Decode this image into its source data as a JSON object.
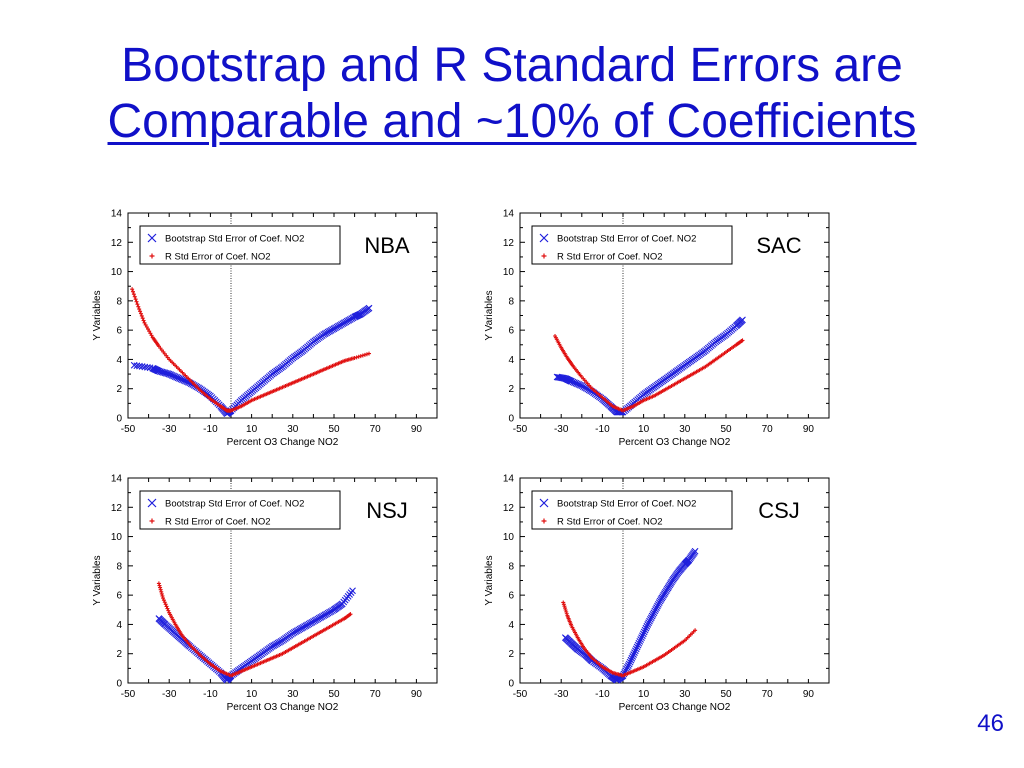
{
  "slide": {
    "title_line1": "Bootstrap and R Standard Errors are",
    "title_line2": "Comparable and ~10% of Coefficients",
    "number": "46"
  },
  "colors": {
    "title": "#1010c8",
    "bootstrap_series": "#1f1fdc",
    "r_series": "#e01010",
    "axis": "#000000"
  },
  "chart_data": [
    {
      "type": "scatter",
      "panel_label": "NBA",
      "xlabel": "Percent O3 Change NO2",
      "ylabel": "Y Variables",
      "xlim": [
        -50,
        100
      ],
      "ylim": [
        0,
        14
      ],
      "xticks": [
        -50,
        -30,
        -10,
        10,
        30,
        50,
        70,
        90
      ],
      "yticks": [
        0,
        2,
        4,
        6,
        8,
        10,
        12,
        14
      ],
      "vline_x": 0,
      "legend_position": "top-left",
      "series": [
        {
          "name": "Bootstrap Std Error of Coef. NO2",
          "marker": "x",
          "color": "#1f1fdc",
          "x": [
            -47,
            -38,
            -35,
            -30,
            -25,
            -20,
            -15,
            -10,
            -5,
            -2,
            0,
            5,
            10,
            15,
            20,
            25,
            30,
            35,
            40,
            45,
            50,
            55,
            60,
            63,
            67
          ],
          "y": [
            3.6,
            3.4,
            3.2,
            3.0,
            2.7,
            2.4,
            2.0,
            1.5,
            0.8,
            0.3,
            0.5,
            1.2,
            1.8,
            2.4,
            3.0,
            3.5,
            4.1,
            4.6,
            5.2,
            5.7,
            6.1,
            6.5,
            6.9,
            7.1,
            7.5
          ]
        },
        {
          "name": "R Std Error of Coef. NO2",
          "marker": "+",
          "color": "#e01010",
          "x": [
            -48,
            -45,
            -42,
            -38,
            -35,
            -30,
            -25,
            -20,
            -15,
            -10,
            -5,
            -2,
            0,
            5,
            10,
            15,
            20,
            25,
            30,
            35,
            40,
            45,
            50,
            55,
            60,
            67
          ],
          "y": [
            8.8,
            7.6,
            6.5,
            5.5,
            4.9,
            4.0,
            3.3,
            2.6,
            1.9,
            1.3,
            0.8,
            0.5,
            0.5,
            0.8,
            1.2,
            1.5,
            1.8,
            2.1,
            2.4,
            2.7,
            3.0,
            3.3,
            3.6,
            3.9,
            4.1,
            4.4
          ]
        }
      ]
    },
    {
      "type": "scatter",
      "panel_label": "SAC",
      "xlabel": "Percent O3 Change NO2",
      "ylabel": "Y Variables",
      "xlim": [
        -50,
        100
      ],
      "ylim": [
        0,
        14
      ],
      "xticks": [
        -50,
        -30,
        -10,
        10,
        30,
        50,
        70,
        90
      ],
      "yticks": [
        0,
        2,
        4,
        6,
        8,
        10,
        12,
        14
      ],
      "vline_x": 0,
      "legend_position": "top-left",
      "series": [
        {
          "name": "Bootstrap Std Error of Coef. NO2",
          "marker": "x",
          "color": "#1f1fdc",
          "x": [
            -32,
            -28,
            -25,
            -20,
            -15,
            -10,
            -6,
            -3,
            0,
            5,
            10,
            15,
            20,
            25,
            30,
            35,
            40,
            45,
            50,
            55,
            58
          ],
          "y": [
            2.8,
            2.7,
            2.5,
            2.2,
            1.8,
            1.3,
            0.8,
            0.4,
            0.4,
            1.0,
            1.6,
            2.1,
            2.6,
            3.1,
            3.6,
            4.1,
            4.6,
            5.2,
            5.7,
            6.3,
            6.7
          ]
        },
        {
          "name": "R Std Error of Coef. NO2",
          "marker": "+",
          "color": "#e01010",
          "x": [
            -33,
            -30,
            -27,
            -24,
            -20,
            -15,
            -10,
            -5,
            0,
            5,
            10,
            15,
            20,
            25,
            30,
            35,
            40,
            45,
            50,
            55,
            58
          ],
          "y": [
            5.6,
            4.8,
            4.1,
            3.5,
            2.8,
            2.0,
            1.4,
            0.8,
            0.5,
            0.8,
            1.2,
            1.5,
            1.9,
            2.3,
            2.7,
            3.1,
            3.5,
            4.0,
            4.5,
            5.0,
            5.3
          ]
        }
      ]
    },
    {
      "type": "scatter",
      "panel_label": "NSJ",
      "xlabel": "Percent O3 Change NO2",
      "ylabel": "Y Variables",
      "xlim": [
        -50,
        100
      ],
      "ylim": [
        0,
        14
      ],
      "xticks": [
        -50,
        -30,
        -10,
        10,
        30,
        50,
        70,
        90
      ],
      "yticks": [
        0,
        2,
        4,
        6,
        8,
        10,
        12,
        14
      ],
      "vline_x": 0,
      "legend_position": "top-left",
      "series": [
        {
          "name": "Bootstrap Std Error of Coef. NO2",
          "marker": "x",
          "color": "#1f1fdc",
          "x": [
            -35,
            -32,
            -28,
            -24,
            -20,
            -15,
            -10,
            -5,
            -2,
            0,
            5,
            10,
            15,
            20,
            25,
            30,
            35,
            40,
            45,
            50,
            54,
            59
          ],
          "y": [
            4.4,
            4.0,
            3.5,
            3.0,
            2.5,
            1.9,
            1.3,
            0.7,
            0.2,
            0.5,
            1.0,
            1.5,
            2.0,
            2.5,
            2.9,
            3.4,
            3.8,
            4.2,
            4.6,
            5.0,
            5.4,
            6.3
          ]
        },
        {
          "name": "R Std Error of Coef. NO2",
          "marker": "+",
          "color": "#e01010",
          "x": [
            -35,
            -33,
            -30,
            -27,
            -24,
            -20,
            -15,
            -10,
            -5,
            0,
            5,
            10,
            15,
            20,
            25,
            30,
            35,
            40,
            45,
            50,
            55,
            58
          ],
          "y": [
            6.8,
            5.8,
            4.8,
            4.0,
            3.3,
            2.6,
            1.9,
            1.3,
            0.8,
            0.5,
            0.8,
            1.1,
            1.4,
            1.7,
            2.0,
            2.4,
            2.8,
            3.2,
            3.6,
            4.0,
            4.4,
            4.7
          ]
        }
      ]
    },
    {
      "type": "scatter",
      "panel_label": "CSJ",
      "xlabel": "Percent O3 Change NO2",
      "ylabel": "Y Variables",
      "xlim": [
        -50,
        100
      ],
      "ylim": [
        0,
        14
      ],
      "xticks": [
        -50,
        -30,
        -10,
        10,
        30,
        50,
        70,
        90
      ],
      "yticks": [
        0,
        2,
        4,
        6,
        8,
        10,
        12,
        14
      ],
      "vline_x": 0,
      "legend_position": "top-left",
      "series": [
        {
          "name": "Bootstrap Std Error of Coef. NO2",
          "marker": "x",
          "color": "#1f1fdc",
          "x": [
            -28,
            -25,
            -22,
            -18,
            -15,
            -10,
            -6,
            -3,
            0,
            3,
            6,
            9,
            12,
            15,
            18,
            21,
            24,
            27,
            30,
            32,
            35
          ],
          "y": [
            3.1,
            2.7,
            2.3,
            1.9,
            1.5,
            1.0,
            0.5,
            0.2,
            0.5,
            1.3,
            2.2,
            3.1,
            4.0,
            4.8,
            5.6,
            6.3,
            7.0,
            7.6,
            8.1,
            8.4,
            9.0
          ]
        },
        {
          "name": "R Std Error of Coef. NO2",
          "marker": "+",
          "color": "#e01010",
          "x": [
            -29,
            -27,
            -25,
            -22,
            -19,
            -15,
            -10,
            -5,
            0,
            5,
            10,
            15,
            20,
            25,
            30,
            35
          ],
          "y": [
            5.5,
            4.6,
            3.9,
            3.1,
            2.4,
            1.7,
            1.1,
            0.7,
            0.5,
            0.8,
            1.1,
            1.5,
            1.9,
            2.4,
            2.9,
            3.6
          ]
        }
      ]
    }
  ]
}
